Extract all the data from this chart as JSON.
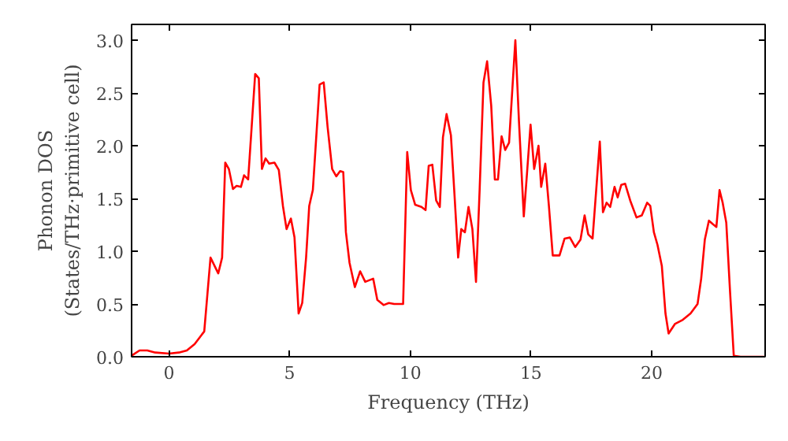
{
  "chart_data": {
    "type": "line",
    "xlabel": "Frequency (THz)",
    "ylabel": "Phonon DOS\n(States/THz·primitive cell)",
    "xlim": [
      -1.55,
      24.7
    ],
    "ylim": [
      0,
      3.15
    ],
    "xticks": [
      0,
      5,
      10,
      15,
      20
    ],
    "yticks": [
      {
        "value": 0,
        "label": "0.0"
      },
      {
        "value": 0.5,
        "label": "0.5"
      },
      {
        "value": 1,
        "label": "1.0"
      },
      {
        "value": 1.5,
        "label": "1.5"
      },
      {
        "value": 2,
        "label": "2.0"
      },
      {
        "value": 2.5,
        "label": "2.5"
      },
      {
        "value": 3,
        "label": "3.0"
      }
    ],
    "grid": false,
    "series": [
      {
        "color": "#ff0000",
        "x": [
          -1.55,
          -1.22,
          -0.9,
          -0.57,
          0,
          0.41,
          0.74,
          1.06,
          1.46,
          1.72,
          2.04,
          2.2,
          2.33,
          2.48,
          2.65,
          2.8,
          2.98,
          3.11,
          3.28,
          3.57,
          3.72,
          3.85,
          4.0,
          4.15,
          4.37,
          4.55,
          4.72,
          4.87,
          5.05,
          5.2,
          5.37,
          5.52,
          5.68,
          5.81,
          5.96,
          6.24,
          6.41,
          6.57,
          6.76,
          6.93,
          7.09,
          7.22,
          7.33,
          7.48,
          7.7,
          7.92,
          8.13,
          8.46,
          8.63,
          8.89,
          9.11,
          9.33,
          9.7,
          9.87,
          10.02,
          10.2,
          10.46,
          10.63,
          10.76,
          10.91,
          11.07,
          11.22,
          11.35,
          11.5,
          11.68,
          11.83,
          11.98,
          12.11,
          12.26,
          12.41,
          12.57,
          12.72,
          12.87,
          13.03,
          13.18,
          13.35,
          13.5,
          13.63,
          13.78,
          13.93,
          14.09,
          14.35,
          14.5,
          14.7,
          14.83,
          14.98,
          15.13,
          15.31,
          15.42,
          15.59,
          15.74,
          15.9,
          16.18,
          16.39,
          16.61,
          16.83,
          17.05,
          17.22,
          17.37,
          17.55,
          17.7,
          17.85,
          17.98,
          18.13,
          18.28,
          18.46,
          18.59,
          18.74,
          18.9,
          19.11,
          19.37,
          19.59,
          19.81,
          19.94,
          20.09,
          20.24,
          20.42,
          20.57,
          20.7,
          20.96,
          21.29,
          21.61,
          21.9,
          22.05,
          22.2,
          22.37,
          22.52,
          22.68,
          22.81,
          22.94,
          23.09,
          23.24,
          23.4,
          23.68,
          24.66
        ],
        "values": [
          0.01,
          0.06,
          0.06,
          0.04,
          0.03,
          0.04,
          0.06,
          0.12,
          0.24,
          0.94,
          0.79,
          0.94,
          1.84,
          1.78,
          1.59,
          1.62,
          1.61,
          1.72,
          1.68,
          2.68,
          2.64,
          1.78,
          1.88,
          1.83,
          1.84,
          1.77,
          1.43,
          1.21,
          1.31,
          1.13,
          0.41,
          0.51,
          0.94,
          1.43,
          1.58,
          2.58,
          2.6,
          2.18,
          1.78,
          1.71,
          1.76,
          1.75,
          1.18,
          0.89,
          0.66,
          0.81,
          0.71,
          0.74,
          0.54,
          0.49,
          0.51,
          0.5,
          0.5,
          1.94,
          1.58,
          1.44,
          1.42,
          1.39,
          1.81,
          1.82,
          1.48,
          1.42,
          2.08,
          2.3,
          2.1,
          1.53,
          0.94,
          1.21,
          1.18,
          1.42,
          1.21,
          0.71,
          1.58,
          2.6,
          2.8,
          2.38,
          1.68,
          1.68,
          2.09,
          1.96,
          2.03,
          3.0,
          2.23,
          1.33,
          1.73,
          2.2,
          1.78,
          2.0,
          1.61,
          1.83,
          1.43,
          0.96,
          0.96,
          1.12,
          1.13,
          1.04,
          1.11,
          1.34,
          1.16,
          1.12,
          1.58,
          2.04,
          1.37,
          1.46,
          1.42,
          1.61,
          1.51,
          1.63,
          1.64,
          1.48,
          1.32,
          1.34,
          1.46,
          1.43,
          1.18,
          1.06,
          0.86,
          0.41,
          0.22,
          0.31,
          0.35,
          0.41,
          0.5,
          0.74,
          1.11,
          1.29,
          1.26,
          1.23,
          1.58,
          1.46,
          1.27,
          0.64,
          0.01,
          0.0,
          0.0
        ]
      }
    ]
  }
}
